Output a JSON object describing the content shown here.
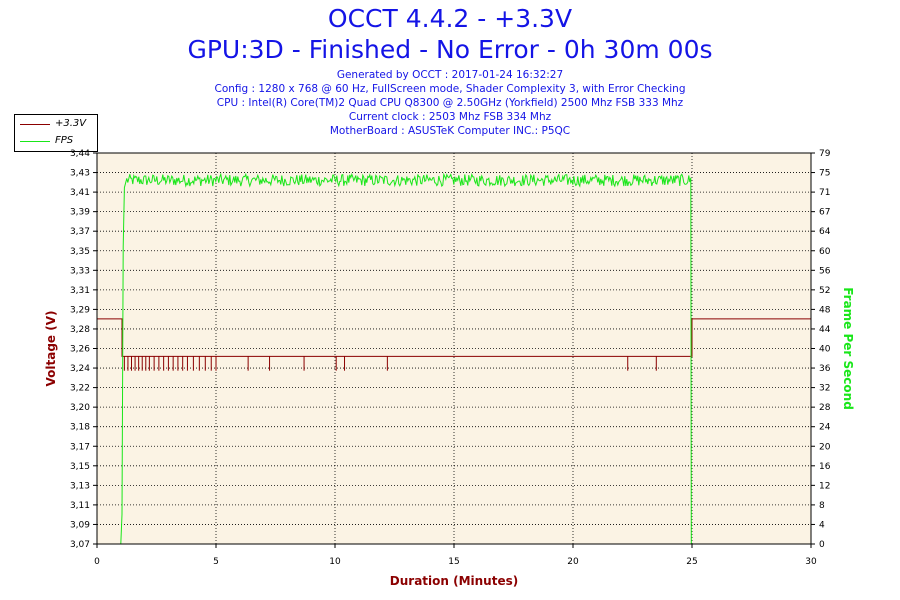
{
  "header": {
    "title": "OCCT 4.4.2 - +3.3V",
    "subtitle": "GPU:3D - Finished - No Error - 0h 30m 00s",
    "info_lines": [
      "Generated by OCCT : 2017-01-24 16:32:27",
      "Config : 1280 x 768 @ 60 Hz, FullScreen mode, Shader Complexity 3, with Error Checking",
      "CPU : Intel(R) Core(TM)2 Quad CPU Q8300 @ 2.50GHz (Yorkfield) 2500 Mhz FSB 333 Mhz",
      "Current clock : 2503 Mhz FSB 334 Mhz",
      "MotherBoard : ASUSTeK Computer INC.: P5QC"
    ]
  },
  "legend": {
    "items": [
      {
        "label": "+3.3V",
        "color": "#8b0000"
      },
      {
        "label": "FPS",
        "color": "#19e619"
      }
    ]
  },
  "chart_data": {
    "type": "line",
    "xlabel": "Duration (Minutes)",
    "ylabel_left": "Voltage (V)",
    "ylabel_right": "Frame Per Second",
    "xlim": [
      0,
      30
    ],
    "x_ticks": [
      "0",
      "5",
      "10",
      "15",
      "20",
      "25",
      "30"
    ],
    "x_tick_values": [
      0,
      5,
      10,
      15,
      20,
      25,
      30
    ],
    "ylim_left": [
      3.07,
      3.44
    ],
    "y_left_ticks": [
      "3,07",
      "3,09",
      "3,11",
      "3,13",
      "3,15",
      "3,17",
      "3,18",
      "3,20",
      "3,22",
      "3,24",
      "3,26",
      "3,28",
      "3,29",
      "3,31",
      "3,33",
      "3,35",
      "3,37",
      "3,39",
      "3,41",
      "3,43",
      "3,44"
    ],
    "ylim_right": [
      0,
      79
    ],
    "y_right_ticks": [
      "0",
      "4",
      "8",
      "12",
      "16",
      "20",
      "24",
      "28",
      "32",
      "36",
      "40",
      "44",
      "48",
      "52",
      "56",
      "60",
      "64",
      "67",
      "71",
      "75",
      "79"
    ],
    "grid": true,
    "plot_background": "#fbf3e4",
    "series": [
      {
        "name": "+3.3V",
        "color": "#8b0000",
        "axis": "left",
        "points": [
          [
            0,
            3.283
          ],
          [
            1.05,
            3.283
          ],
          [
            1.05,
            3.2475
          ],
          [
            25.0,
            3.2475
          ],
          [
            25.0,
            3.283
          ],
          [
            30,
            3.283
          ]
        ],
        "dips": [
          1.15,
          1.3,
          1.45,
          1.6,
          1.75,
          1.9,
          2.05,
          2.2,
          2.4,
          2.6,
          2.8,
          3.0,
          3.2,
          3.4,
          3.6,
          3.8,
          4.05,
          4.3,
          4.55,
          4.8,
          5.0,
          6.35,
          7.25,
          8.7,
          10.05,
          10.4,
          12.2,
          22.3,
          23.5
        ],
        "dip_value": 3.234
      },
      {
        "name": "FPS",
        "color": "#19e619",
        "axis": "right",
        "points": [
          [
            1.0,
            0
          ],
          [
            1.05,
            6
          ],
          [
            1.1,
            60
          ],
          [
            1.15,
            72
          ],
          [
            1.25,
            74
          ],
          [
            24.95,
            74
          ],
          [
            24.97,
            0
          ]
        ],
        "nominal": 73.5,
        "jitter": 1.2
      }
    ]
  }
}
